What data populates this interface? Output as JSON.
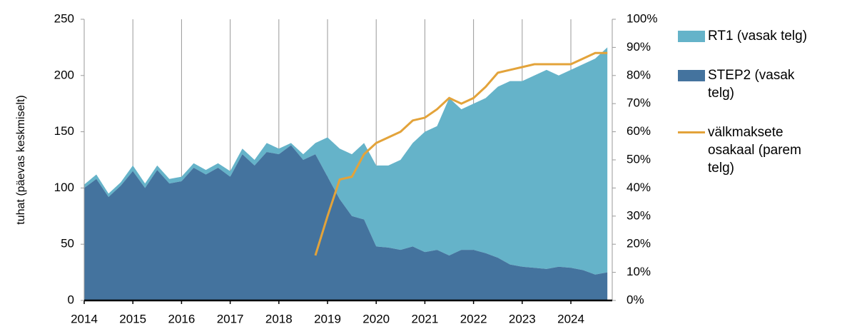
{
  "chart_data": {
    "type": "area",
    "stacked": true,
    "ylabel": "tuhat (päevas keskmiselt)",
    "x": [
      2014.0,
      2014.25,
      2014.5,
      2014.75,
      2015.0,
      2015.25,
      2015.5,
      2015.75,
      2016.0,
      2016.25,
      2016.5,
      2016.75,
      2017.0,
      2017.25,
      2017.5,
      2017.75,
      2018.0,
      2018.25,
      2018.5,
      2018.75,
      2019.0,
      2019.25,
      2019.5,
      2019.75,
      2020.0,
      2020.25,
      2020.5,
      2020.75,
      2021.0,
      2021.25,
      2021.5,
      2021.75,
      2022.0,
      2022.25,
      2022.5,
      2022.75,
      2023.0,
      2023.25,
      2023.5,
      2023.75,
      2024.0,
      2024.25,
      2024.5,
      2024.75
    ],
    "xlim": [
      2014,
      2024.85
    ],
    "xticks": [
      2014,
      2015,
      2016,
      2017,
      2018,
      2019,
      2020,
      2021,
      2022,
      2023,
      2024
    ],
    "ylim": [
      0,
      250
    ],
    "yticks": [
      0,
      50,
      100,
      150,
      200,
      250
    ],
    "y2lim": [
      0,
      100
    ],
    "y2ticks": [
      {
        "value": 0,
        "label": "0%"
      },
      {
        "value": 10,
        "label": "10%"
      },
      {
        "value": 20,
        "label": "20%"
      },
      {
        "value": 30,
        "label": "30%"
      },
      {
        "value": 40,
        "label": "40%"
      },
      {
        "value": 50,
        "label": "50%"
      },
      {
        "value": 60,
        "label": "60%"
      },
      {
        "value": 70,
        "label": "70%"
      },
      {
        "value": 80,
        "label": "80%"
      },
      {
        "value": 90,
        "label": "90%"
      },
      {
        "value": 100,
        "label": "100%"
      }
    ],
    "grid": true,
    "series": [
      {
        "name": "RT1 (vasak telg)",
        "type": "area",
        "color": "#65b3c9",
        "values": [
          3,
          4,
          3,
          3,
          5,
          4,
          4,
          4,
          4,
          4,
          4,
          4,
          5,
          5,
          5,
          8,
          5,
          2,
          5,
          10,
          35,
          45,
          55,
          68,
          72,
          73,
          80,
          92,
          107,
          110,
          140,
          125,
          130,
          138,
          152,
          163,
          165,
          171,
          177,
          170,
          176,
          183,
          192,
          200
        ]
      },
      {
        "name": "STEP2 (vasak telg)",
        "type": "area",
        "color": "#44739e",
        "values": [
          100,
          108,
          92,
          102,
          115,
          100,
          116,
          104,
          106,
          118,
          112,
          118,
          110,
          130,
          120,
          132,
          130,
          138,
          125,
          130,
          110,
          90,
          75,
          72,
          48,
          47,
          45,
          48,
          43,
          45,
          40,
          45,
          45,
          42,
          38,
          32,
          30,
          29,
          28,
          30,
          29,
          27,
          23,
          25
        ]
      },
      {
        "name": "välkmaksete osakaal (parem telg)",
        "type": "line",
        "axis": "y2",
        "color": "#e3a33a",
        "values": [
          null,
          null,
          null,
          null,
          null,
          null,
          null,
          null,
          null,
          null,
          null,
          null,
          null,
          null,
          null,
          null,
          null,
          null,
          null,
          16,
          30,
          43,
          44,
          52,
          56,
          58,
          60,
          64,
          65,
          68,
          72,
          70,
          72,
          76,
          81,
          82,
          83,
          84,
          84,
          84,
          84,
          86,
          88,
          88
        ]
      }
    ]
  }
}
